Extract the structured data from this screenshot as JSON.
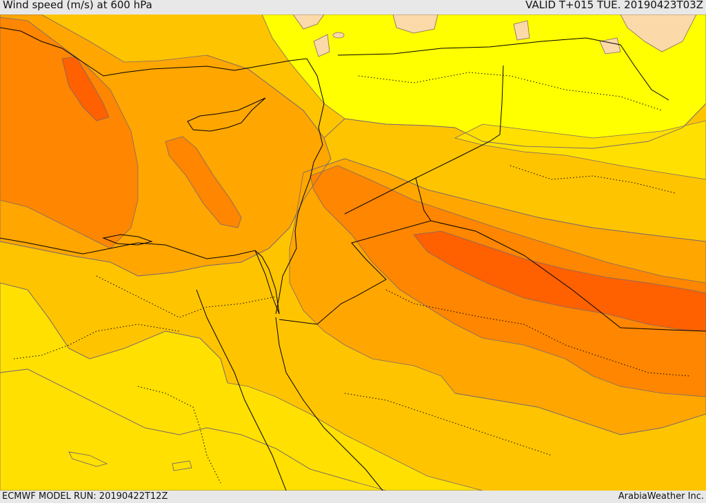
{
  "header": {
    "title": "Wind speed (m/s) at 600 hPa",
    "valid": "VALID T+015 TUE. 20190423T03Z"
  },
  "footer": {
    "model_run": "ECMWF MODEL RUN: 20190422T12Z",
    "credit": "ArabiaWeather Inc."
  },
  "map": {
    "variable": "wind speed",
    "units": "m/s",
    "pressure_level_hpa": 600,
    "colors": {
      "band_1": "#ffff00",
      "band_2": "#ffe000",
      "band_3": "#ffc400",
      "band_4": "#ffa600",
      "band_5": "#ff8600",
      "band_6": "#ff6000",
      "low_wind": "#fcd9a8",
      "contour_line": "#7a6a6a",
      "boundary": "#000000"
    }
  }
}
